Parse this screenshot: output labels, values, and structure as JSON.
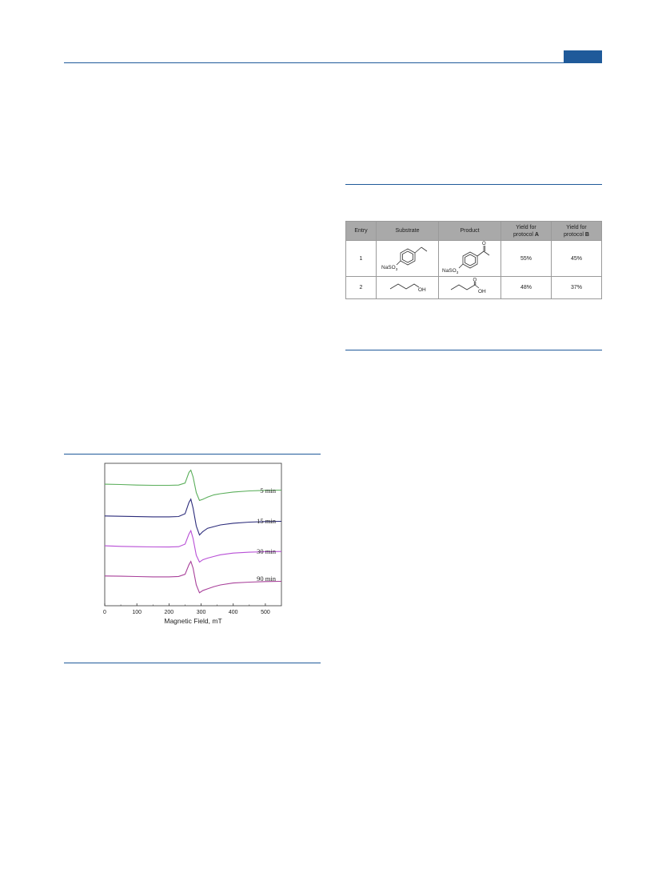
{
  "table": {
    "headers": [
      "Entry",
      "Substrate",
      "Product",
      "Yield for",
      "protocol",
      "A",
      "Yield for",
      "protocol",
      "B"
    ],
    "rows": [
      {
        "entry": "1",
        "substrate_label": "NaSO",
        "substrate_sub": "3",
        "product_label": "NaSO",
        "product_sub": "3",
        "product_o": "O",
        "yield_a": "55%",
        "yield_b": "45%"
      },
      {
        "entry": "2",
        "substrate_label": "OH",
        "product_label": "OH",
        "product_o": "O",
        "yield_a": "48%",
        "yield_b": "37%"
      }
    ]
  },
  "colors": {
    "accent": "#1f5a9a",
    "table_header": "#a9a9a9",
    "trace_5min": "#5aae5a",
    "trace_15min": "#2b2b7a",
    "trace_30min": "#b84fd6",
    "trace_90min": "#a8409a"
  },
  "chart_data": {
    "type": "line",
    "xlabel": "Magnetic Field, mT",
    "ylabel": "",
    "xlim": [
      0,
      550
    ],
    "xticks": [
      "0",
      "100",
      "200",
      "300",
      "400",
      "500"
    ],
    "series": [
      {
        "name": "5 min",
        "x": [
          0,
          50,
          100,
          150,
          200,
          230,
          250,
          262,
          268,
          275,
          285,
          295,
          305,
          320,
          340,
          360,
          400,
          450,
          500,
          550
        ],
        "y": [
          0.35,
          0.32,
          0.27,
          0.25,
          0.25,
          0.27,
          0.45,
          1.4,
          1.6,
          1.0,
          -0.4,
          -1.1,
          -1.0,
          -0.8,
          -0.6,
          -0.5,
          -0.35,
          -0.25,
          -0.2,
          -0.18
        ]
      },
      {
        "name": "15 min",
        "x": [
          0,
          50,
          100,
          150,
          200,
          230,
          250,
          262,
          268,
          275,
          285,
          295,
          305,
          320,
          340,
          360,
          400,
          450,
          500,
          550
        ],
        "y": [
          0.3,
          0.27,
          0.24,
          0.22,
          0.22,
          0.25,
          0.5,
          1.5,
          1.8,
          1.0,
          -0.6,
          -1.4,
          -1.1,
          -0.8,
          -0.65,
          -0.5,
          -0.35,
          -0.25,
          -0.2,
          -0.18
        ]
      },
      {
        "name": "30 min",
        "x": [
          0,
          50,
          100,
          150,
          200,
          230,
          250,
          262,
          268,
          275,
          285,
          295,
          305,
          320,
          340,
          360,
          400,
          450,
          500,
          550
        ],
        "y": [
          0.35,
          0.3,
          0.27,
          0.25,
          0.24,
          0.27,
          0.5,
          1.4,
          1.7,
          1.0,
          -0.5,
          -1.1,
          -0.9,
          -0.75,
          -0.6,
          -0.45,
          -0.3,
          -0.22,
          -0.18,
          -0.16
        ]
      },
      {
        "name": "90 min",
        "x": [
          0,
          50,
          100,
          150,
          200,
          230,
          250,
          262,
          268,
          275,
          285,
          295,
          305,
          320,
          340,
          360,
          400,
          450,
          500,
          550
        ],
        "y": [
          0.3,
          0.28,
          0.25,
          0.22,
          0.22,
          0.26,
          0.45,
          1.3,
          1.6,
          1.0,
          -0.5,
          -1.2,
          -1.0,
          -0.85,
          -0.65,
          -0.5,
          -0.33,
          -0.25,
          -0.2,
          -0.18
        ]
      }
    ]
  }
}
